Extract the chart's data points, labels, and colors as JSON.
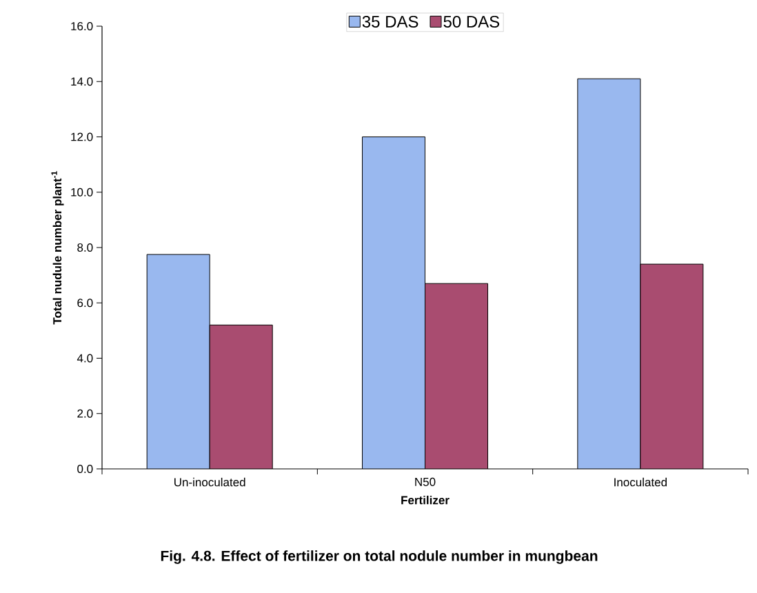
{
  "chart_data": {
    "type": "bar",
    "ylabel": "Total nudule number plant$^{-1}$",
    "xlabel": "Fertilizer",
    "categories": [
      "Un-inoculated",
      "N50",
      "Inoculated"
    ],
    "series": [
      {
        "name": "35 DAS",
        "color": "#99b8ef",
        "values": [
          7.75,
          12.0,
          14.1
        ]
      },
      {
        "name": "50 DAS",
        "color": "#a94c70",
        "values": [
          5.2,
          6.7,
          7.4
        ]
      }
    ],
    "ylim": [
      0,
      16
    ],
    "yticks": [
      {
        "value": 0,
        "label": "0.0"
      },
      {
        "value": 2,
        "label": "2.0"
      },
      {
        "value": 4,
        "label": "4.0"
      },
      {
        "value": 6,
        "label": "6.0"
      },
      {
        "value": 8,
        "label": "8.0"
      },
      {
        "value": 10,
        "label": "10.0"
      },
      {
        "value": 12,
        "label": "12.0"
      },
      {
        "value": 14,
        "label": "14.0"
      },
      {
        "value": 16,
        "label": "16.0"
      }
    ],
    "grid": false,
    "legend": "top",
    "annotations": [
      "Fig. 4.8. Effect of fertilizer on total nodule number in mungbean"
    ]
  }
}
